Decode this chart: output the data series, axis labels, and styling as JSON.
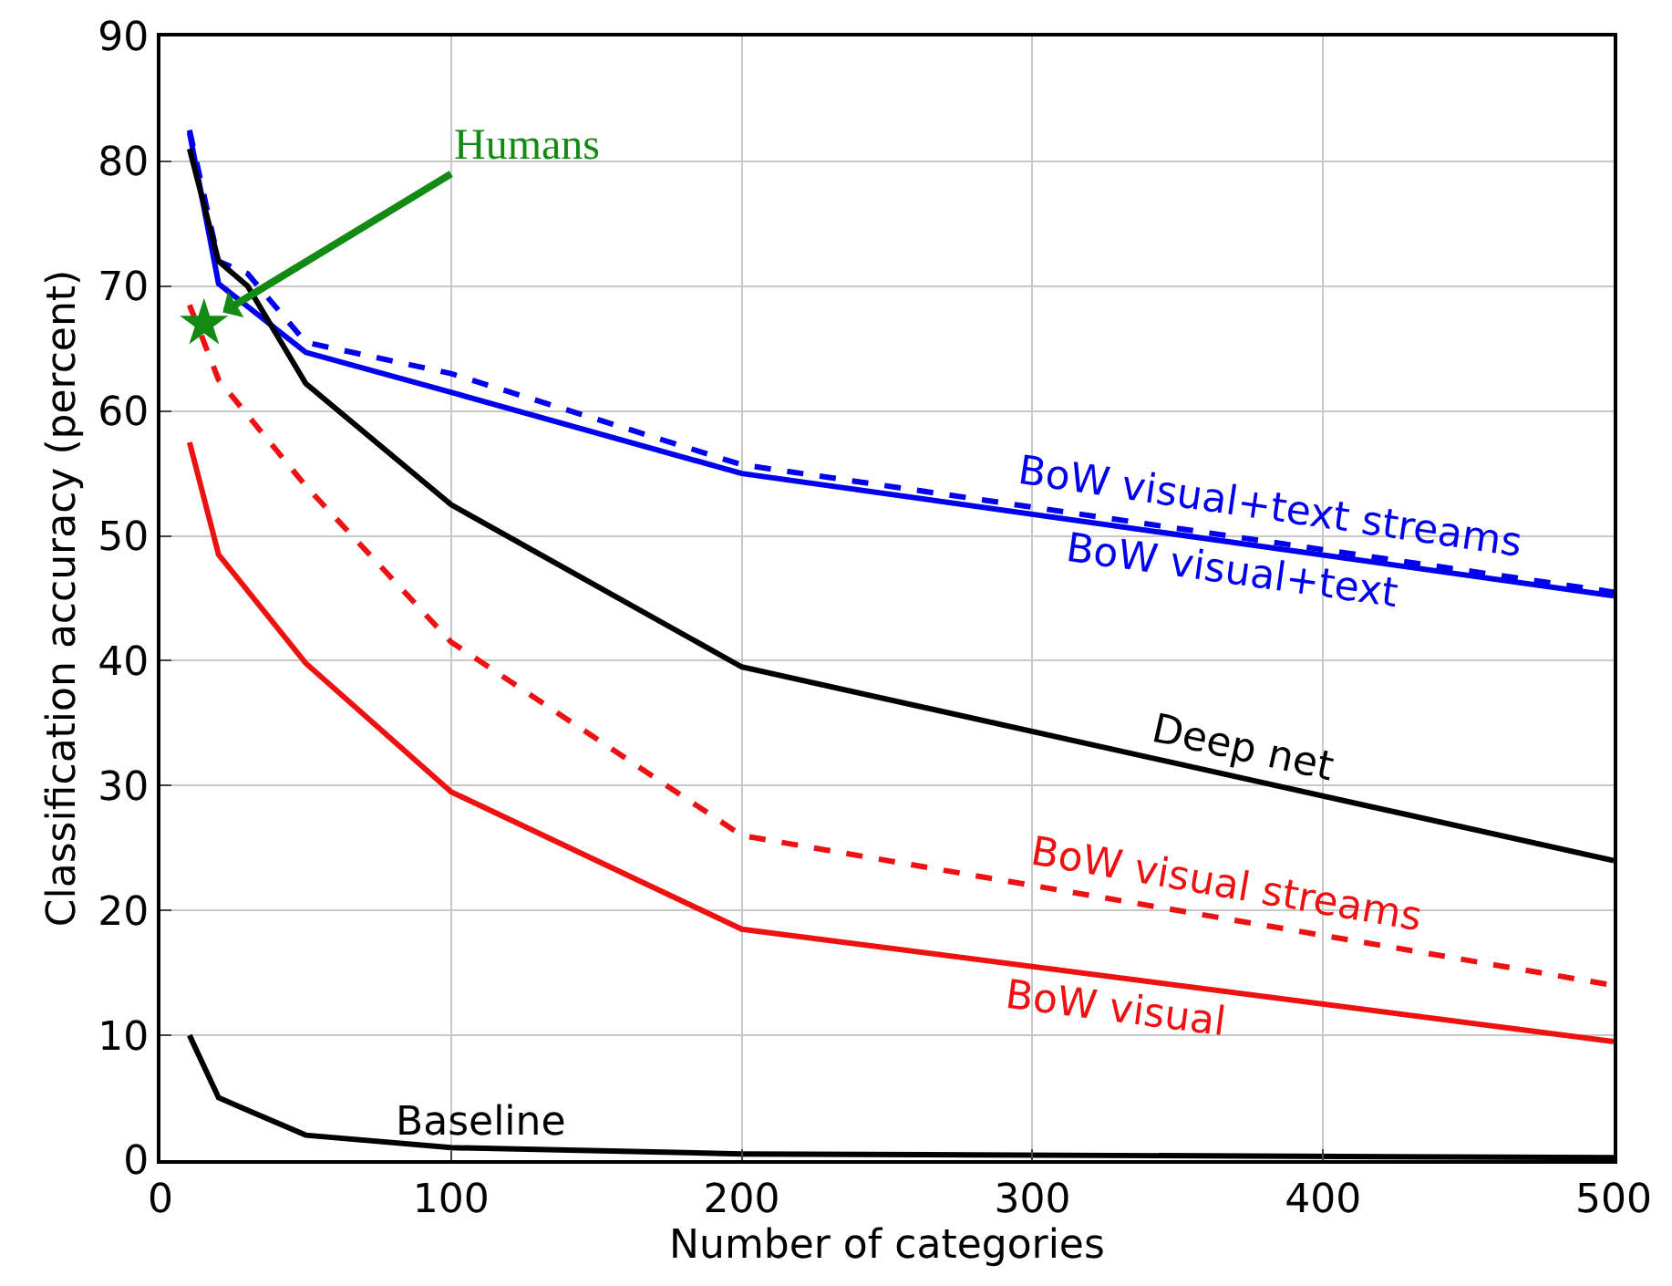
{
  "chart_data": {
    "type": "line",
    "xlabel": "Number of categories",
    "ylabel": "Classification accuracy (percent)",
    "xlim": [
      0,
      500
    ],
    "xticks": [
      0,
      100,
      200,
      300,
      400,
      500
    ],
    "ylim": [
      0,
      90
    ],
    "yticks": [
      0,
      10,
      20,
      30,
      40,
      50,
      60,
      70,
      80,
      90
    ],
    "grid": true,
    "legend": false,
    "marker": "none",
    "series": [
      {
        "name": "BoW visual+text",
        "color": "#0000ee",
        "line_style": "solid",
        "x": [
          10,
          20,
          50,
          100,
          200,
          500
        ],
        "values": [
          82.3,
          70.2,
          64.7,
          61.5,
          55.0,
          45.2
        ]
      },
      {
        "name": "BoW visual+text streams",
        "color": "#0000ee",
        "line_style": "dashed",
        "x": [
          10,
          20,
          30,
          50,
          100,
          200,
          500
        ],
        "values": [
          82.5,
          72,
          71,
          65.5,
          63,
          55.7,
          45.5
        ]
      },
      {
        "name": "Deep net",
        "color": "#000000",
        "line_style": "solid",
        "x": [
          10,
          20,
          30,
          50,
          100,
          200,
          500
        ],
        "values": [
          81,
          72,
          70,
          62.2,
          52.5,
          39.5,
          24
        ]
      },
      {
        "name": "BoW visual streams",
        "color": "#ee1111",
        "line_style": "dashed",
        "x": [
          10,
          20,
          50,
          100,
          200,
          500
        ],
        "values": [
          68.5,
          62.5,
          54,
          41.5,
          26,
          14
        ]
      },
      {
        "name": "BoW visual",
        "color": "#ee1111",
        "line_style": "solid",
        "x": [
          10,
          20,
          50,
          100,
          200,
          500
        ],
        "values": [
          57.5,
          48.5,
          39.8,
          29.5,
          18.5,
          9.5
        ]
      },
      {
        "name": "Baseline",
        "color": "#000000",
        "line_style": "solid",
        "x": [
          10,
          20,
          50,
          100,
          200,
          500
        ],
        "values": [
          10,
          5,
          2,
          1,
          0.5,
          0.2
        ]
      },
      {
        "name": "Humans",
        "type": "scatter",
        "marker": "star",
        "color": "#138a13",
        "x": [
          15
        ],
        "values": [
          67
        ]
      }
    ]
  }
}
